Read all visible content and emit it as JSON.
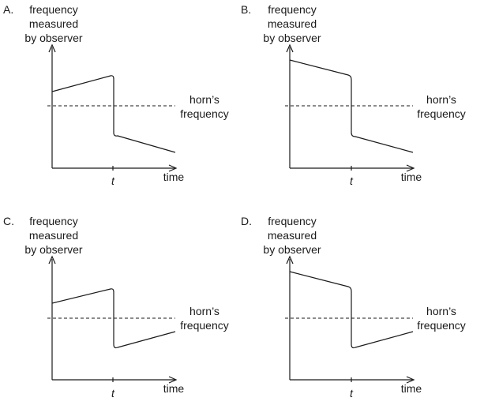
{
  "panels": [
    {
      "letter": "A.",
      "y_label": [
        "frequency",
        "measured",
        "by observer"
      ],
      "x_label": "time",
      "t_label": "t",
      "ref_label": [
        "horn’s",
        "frequency"
      ],
      "before": "rising",
      "after": "falling"
    },
    {
      "letter": "B.",
      "y_label": [
        "frequency",
        "measured",
        "by observer"
      ],
      "x_label": "time",
      "t_label": "t",
      "ref_label": [
        "horn’s",
        "frequency"
      ],
      "before": "falling",
      "after": "falling"
    },
    {
      "letter": "C.",
      "y_label": [
        "frequency",
        "measured",
        "by observer"
      ],
      "x_label": "time",
      "t_label": "t",
      "ref_label": [
        "horn’s",
        "frequency"
      ],
      "before": "rising",
      "after": "rising"
    },
    {
      "letter": "D.",
      "y_label": [
        "frequency",
        "measured",
        "by observer"
      ],
      "x_label": "time",
      "t_label": "t",
      "ref_label": [
        "horn’s",
        "frequency"
      ],
      "before": "falling",
      "after": "rising"
    }
  ]
}
